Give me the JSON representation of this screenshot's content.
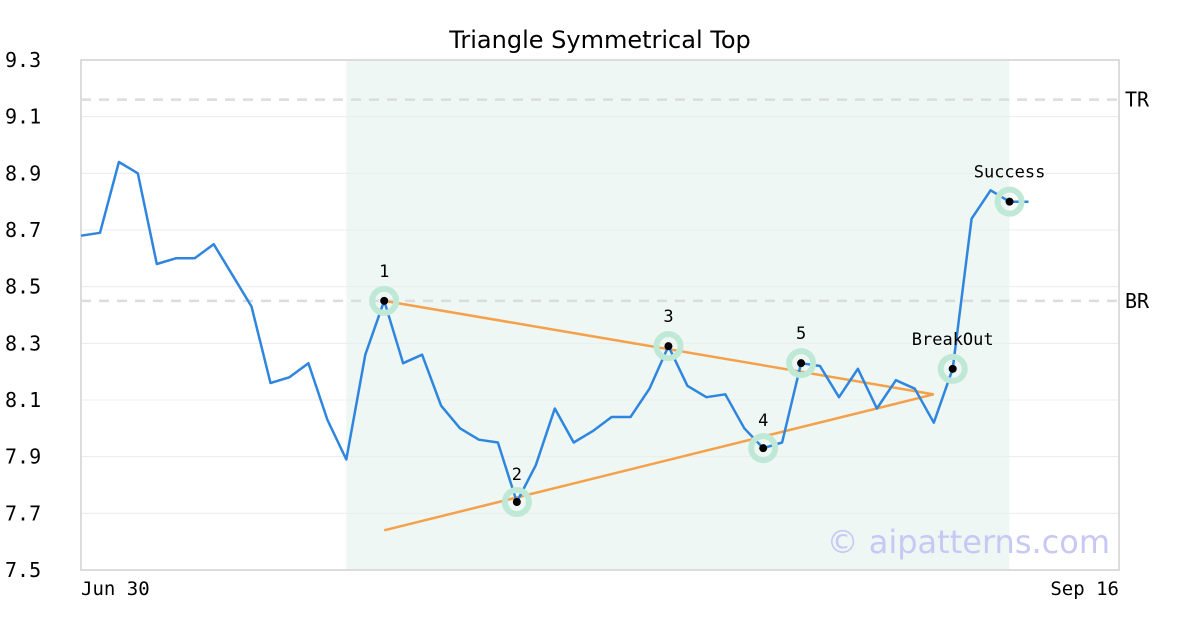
{
  "chart_data": {
    "type": "line",
    "title": "Triangle Symmetrical Top",
    "xlabel": "",
    "ylabel": "",
    "ylim": [
      7.5,
      9.3
    ],
    "y_ticks": [
      "9.3",
      "9.1",
      "8.9",
      "8.7",
      "8.5",
      "8.3",
      "8.1",
      "7.9",
      "7.7",
      "7.5"
    ],
    "x_tick_labels": {
      "start": "Jun 30",
      "end": "Sep 16"
    },
    "grid": "horizontal",
    "colors": {
      "price_line": "#2e86de",
      "trend_lines": "#f5a04a",
      "pattern_zone": "#eef7f3",
      "marker_halo": "#bfe9d6",
      "marker_dot": "#000000",
      "reference_lines": "#dcdcdc",
      "grid": "#ececec",
      "axes": "#dcdcdc",
      "watermark": "#c8c8f4"
    },
    "series": [
      {
        "values": [
          8.68,
          8.69,
          8.94,
          8.9,
          8.58,
          8.6,
          8.6,
          8.65,
          8.54,
          8.43,
          8.16,
          8.18,
          8.23,
          8.03,
          7.89,
          8.26,
          8.45,
          8.23,
          8.26,
          8.08,
          8.0,
          7.96,
          7.95,
          7.74,
          7.87,
          8.07,
          7.95,
          7.99,
          8.04,
          8.04,
          8.14,
          8.29,
          8.15,
          8.11,
          8.12,
          8.0,
          7.93,
          7.95,
          8.23,
          8.22,
          8.11,
          8.21,
          8.07,
          8.17,
          8.14,
          8.02,
          8.21,
          8.74,
          8.84,
          8.8,
          8.8
        ]
      }
    ],
    "pattern_zone": {
      "start_index": 14,
      "end_index": 49
    },
    "pattern_points": [
      {
        "label": "1",
        "index": 16,
        "value": 8.45
      },
      {
        "label": "2",
        "index": 23,
        "value": 7.74
      },
      {
        "label": "3",
        "index": 31,
        "value": 8.29
      },
      {
        "label": "4",
        "index": 36,
        "value": 7.93
      },
      {
        "label": "5",
        "index": 38,
        "value": 8.23
      },
      {
        "label": "BreakOut",
        "index": 46,
        "value": 8.21
      },
      {
        "label": "Success",
        "index": 49,
        "value": 8.8
      }
    ],
    "trend_lines": [
      {
        "from": {
          "index": 16,
          "value": 8.45
        },
        "to": {
          "index": 45,
          "value": 8.12
        }
      },
      {
        "from": {
          "index": 16,
          "value": 7.64
        },
        "to": {
          "index": 45,
          "value": 8.12
        }
      }
    ],
    "reference_lines": [
      {
        "label": "TR",
        "value": 9.16
      },
      {
        "label": "BR",
        "value": 8.45
      }
    ],
    "watermark": "© aipatterns.com"
  }
}
